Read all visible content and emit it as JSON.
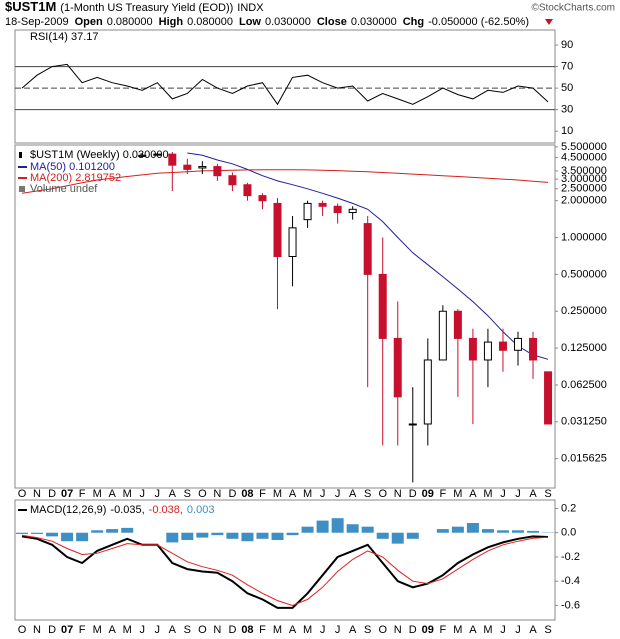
{
  "header": {
    "symbol": "$UST1M",
    "name": "(1-Month US Treasury Yield (EOD))",
    "exchange": "INDX",
    "source": "©StockCharts.com",
    "date": "18-Sep-2009",
    "quote": [
      {
        "label": "Open",
        "value": "0.080000"
      },
      {
        "label": "High",
        "value": "0.080000"
      },
      {
        "label": "Low",
        "value": "0.030000"
      },
      {
        "label": "Close",
        "value": "0.030000"
      },
      {
        "label": "Chg",
        "value": "-0.050000 (-62.50%)"
      }
    ]
  },
  "chart_data": [
    {
      "type": "line",
      "title": "RSI(14) 37.17",
      "series": [
        {
          "name": "RSI(14)",
          "color": "#000000",
          "values": [
            50,
            62,
            70,
            72,
            55,
            60,
            55,
            52,
            48,
            55,
            40,
            45,
            58,
            50,
            45,
            52,
            55,
            35,
            60,
            62,
            55,
            50,
            52,
            38,
            45,
            40,
            35,
            42,
            50,
            44,
            40,
            48,
            46,
            52,
            50,
            37.17
          ]
        }
      ],
      "ylim": [
        -1,
        104
      ],
      "yticks": [
        10,
        30,
        50,
        70,
        90
      ],
      "reference_lines": [
        {
          "value": 70,
          "style": "solid"
        },
        {
          "value": 50,
          "style": "dashed"
        },
        {
          "value": 30,
          "style": "solid"
        }
      ]
    },
    {
      "type": "candlestick",
      "title": "$UST1M (Weekly) 0.030000",
      "categories": [
        "O",
        "N",
        "D",
        "07",
        "F",
        "M",
        "A",
        "M",
        "J",
        "J",
        "A",
        "S",
        "O",
        "N",
        "D",
        "08",
        "F",
        "M",
        "A",
        "M",
        "J",
        "J",
        "A",
        "S",
        "O",
        "N",
        "D",
        "09",
        "F",
        "M",
        "A",
        "M",
        "J",
        "J",
        "A",
        "S"
      ],
      "open": [
        null,
        null,
        null,
        null,
        null,
        null,
        null,
        null,
        4.6,
        4.8,
        4.8,
        3.9,
        3.7,
        3.8,
        3.2,
        2.7,
        2.2,
        1.9,
        0.7,
        1.4,
        1.9,
        1.8,
        1.6,
        1.3,
        0.5,
        0.15,
        0.03,
        0.03,
        0.1,
        0.25,
        0.15,
        0.1,
        0.14,
        0.12,
        0.15,
        0.08
      ],
      "high": [
        null,
        null,
        null,
        null,
        null,
        null,
        null,
        null,
        4.9,
        4.9,
        5.0,
        4.4,
        4.2,
        4.0,
        3.4,
        2.8,
        2.3,
        2.1,
        1.5,
        2.0,
        2.0,
        1.9,
        1.8,
        1.5,
        1.0,
        0.3,
        0.06,
        0.15,
        0.28,
        0.26,
        0.18,
        0.18,
        0.18,
        0.17,
        0.17,
        0.08
      ],
      "low": [
        null,
        null,
        null,
        null,
        null,
        null,
        null,
        null,
        4.5,
        4.6,
        2.4,
        3.3,
        3.3,
        2.9,
        2.4,
        2.0,
        1.7,
        0.26,
        0.4,
        1.2,
        1.5,
        1.3,
        1.4,
        0.06,
        0.02,
        0.02,
        0.01,
        0.02,
        0.1,
        0.05,
        0.03,
        0.06,
        0.08,
        0.09,
        0.07,
        0.03
      ],
      "close": [
        null,
        null,
        null,
        null,
        null,
        null,
        null,
        null,
        4.7,
        4.8,
        3.9,
        3.6,
        3.8,
        3.2,
        2.7,
        2.2,
        2.0,
        0.7,
        1.2,
        1.9,
        1.8,
        1.6,
        1.7,
        0.5,
        0.15,
        0.05,
        0.03,
        0.1,
        0.25,
        0.15,
        0.1,
        0.14,
        0.12,
        0.15,
        0.1,
        0.03
      ],
      "up_color": "#000000",
      "down_color": "#c8102e",
      "series": [
        {
          "name": "MA(50) 0.101200",
          "color": "#1f1f9c",
          "values": [
            null,
            null,
            null,
            null,
            null,
            null,
            null,
            null,
            null,
            null,
            null,
            4.9,
            4.7,
            4.3,
            4.0,
            3.6,
            3.2,
            2.9,
            2.7,
            2.5,
            2.3,
            2.1,
            1.9,
            1.7,
            1.35,
            1.0,
            0.75,
            0.6,
            0.48,
            0.38,
            0.3,
            0.23,
            0.17,
            0.13,
            0.11,
            0.1012
          ]
        },
        {
          "name": "MA(200) 2.819752",
          "color": "#d42020",
          "values": [
            2.3,
            2.4,
            2.5,
            2.65,
            2.8,
            2.95,
            3.05,
            3.15,
            3.25,
            3.35,
            3.4,
            3.45,
            3.5,
            3.52,
            3.55,
            3.57,
            3.58,
            3.58,
            3.58,
            3.57,
            3.55,
            3.52,
            3.48,
            3.45,
            3.4,
            3.35,
            3.3,
            3.25,
            3.2,
            3.15,
            3.1,
            3.05,
            3.0,
            2.95,
            2.88,
            2.82
          ]
        }
      ],
      "legend_extra": "Volume undef",
      "log_scale": true,
      "ylim": [
        0.009,
        5.7
      ],
      "yticks": [
        {
          "value": 5.5,
          "label": "5.500000"
        },
        {
          "value": 4.5,
          "label": "4.500000"
        },
        {
          "value": 3.5,
          "label": "3.500000"
        },
        {
          "value": 3.0,
          "label": "3.000000"
        },
        {
          "value": 2.5,
          "label": "2.500000"
        },
        {
          "value": 2.0,
          "label": "2.000000"
        },
        {
          "value": 1.0,
          "label": "1.000000"
        },
        {
          "value": 0.5,
          "label": "0.500000"
        },
        {
          "value": 0.25,
          "label": "0.250000"
        },
        {
          "value": 0.125,
          "label": "0.125000"
        },
        {
          "value": 0.0625,
          "label": "0.062500"
        },
        {
          "value": 0.03125,
          "label": "0.031250"
        },
        {
          "value": 0.015625,
          "label": "0.015625"
        }
      ]
    },
    {
      "type": "macd",
      "title": "MACD(12,26,9)",
      "categories": [
        "O",
        "N",
        "D",
        "07",
        "F",
        "M",
        "A",
        "M",
        "J",
        "J",
        "A",
        "S",
        "O",
        "N",
        "D",
        "08",
        "F",
        "M",
        "A",
        "M",
        "J",
        "J",
        "A",
        "S",
        "O",
        "N",
        "D",
        "09",
        "F",
        "M",
        "A",
        "M",
        "J",
        "J",
        "A",
        "S"
      ],
      "series": [
        {
          "name": "-0.035,",
          "color": "#000000",
          "style": "line",
          "values": [
            -0.03,
            -0.05,
            -0.1,
            -0.2,
            -0.25,
            -0.15,
            -0.1,
            -0.05,
            -0.1,
            -0.1,
            -0.25,
            -0.3,
            -0.32,
            -0.33,
            -0.4,
            -0.5,
            -0.55,
            -0.62,
            -0.62,
            -0.5,
            -0.35,
            -0.2,
            -0.15,
            -0.1,
            -0.25,
            -0.4,
            -0.45,
            -0.42,
            -0.35,
            -0.25,
            -0.18,
            -0.12,
            -0.08,
            -0.05,
            -0.03,
            -0.035
          ]
        },
        {
          "name": "-0.038,",
          "color": "#e02020",
          "style": "line",
          "values": [
            -0.02,
            -0.04,
            -0.07,
            -0.13,
            -0.18,
            -0.17,
            -0.13,
            -0.09,
            -0.1,
            -0.1,
            -0.17,
            -0.24,
            -0.28,
            -0.31,
            -0.35,
            -0.43,
            -0.5,
            -0.56,
            -0.6,
            -0.55,
            -0.45,
            -0.32,
            -0.22,
            -0.15,
            -0.2,
            -0.31,
            -0.4,
            -0.42,
            -0.38,
            -0.3,
            -0.22,
            -0.15,
            -0.1,
            -0.07,
            -0.045,
            -0.038
          ]
        },
        {
          "name": "0.003",
          "color": "#3d8fc4",
          "style": "bar",
          "values": [
            -0.01,
            -0.01,
            -0.03,
            -0.07,
            -0.07,
            0.02,
            0.03,
            0.04,
            0.0,
            0.0,
            -0.08,
            -0.06,
            -0.04,
            -0.02,
            -0.05,
            -0.07,
            -0.05,
            -0.06,
            -0.02,
            0.05,
            0.1,
            0.12,
            0.07,
            0.05,
            -0.05,
            -0.09,
            -0.05,
            0.0,
            0.03,
            0.05,
            0.08,
            0.03,
            0.02,
            0.02,
            0.015,
            0.003
          ]
        }
      ],
      "ylim": [
        -0.72,
        0.27
      ],
      "yticks": [
        0.2,
        {
          "value": 0,
          "label": "0.0"
        },
        -0.2,
        -0.4,
        -0.6
      ]
    }
  ]
}
